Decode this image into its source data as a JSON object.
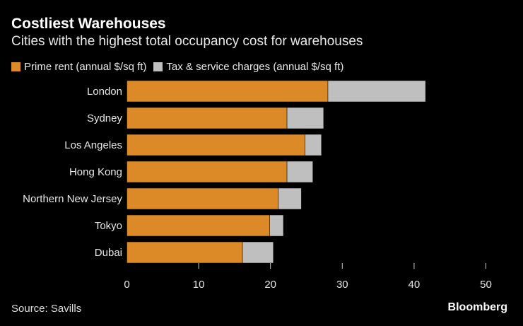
{
  "chart_data": {
    "type": "bar",
    "orientation": "horizontal",
    "stacked": true,
    "title": "Costliest Warehouses",
    "subtitle": "Cities with the highest total occupancy cost for warehouses",
    "categories": [
      "London",
      "Sydney",
      "Los Angeles",
      "Hong Kong",
      "Northern New Jersey",
      "Tokyo",
      "Dubai"
    ],
    "series": [
      {
        "name": "Prime rent (annual $/sq ft)",
        "color": "#db8a27",
        "values": [
          28.0,
          22.3,
          24.8,
          22.3,
          21.1,
          19.9,
          16.1
        ]
      },
      {
        "name": "Tax & service charges (annual $/sq ft)",
        "color": "#bfbfbf",
        "values": [
          13.6,
          5.1,
          2.3,
          3.6,
          3.2,
          1.9,
          4.3
        ]
      }
    ],
    "xlim": [
      0,
      50
    ],
    "xticks": [
      "0",
      "10",
      "20",
      "30",
      "40",
      "50"
    ],
    "grid": false,
    "legend_position": "top-left"
  },
  "source": "Source: Savills",
  "brand": "Bloomberg"
}
